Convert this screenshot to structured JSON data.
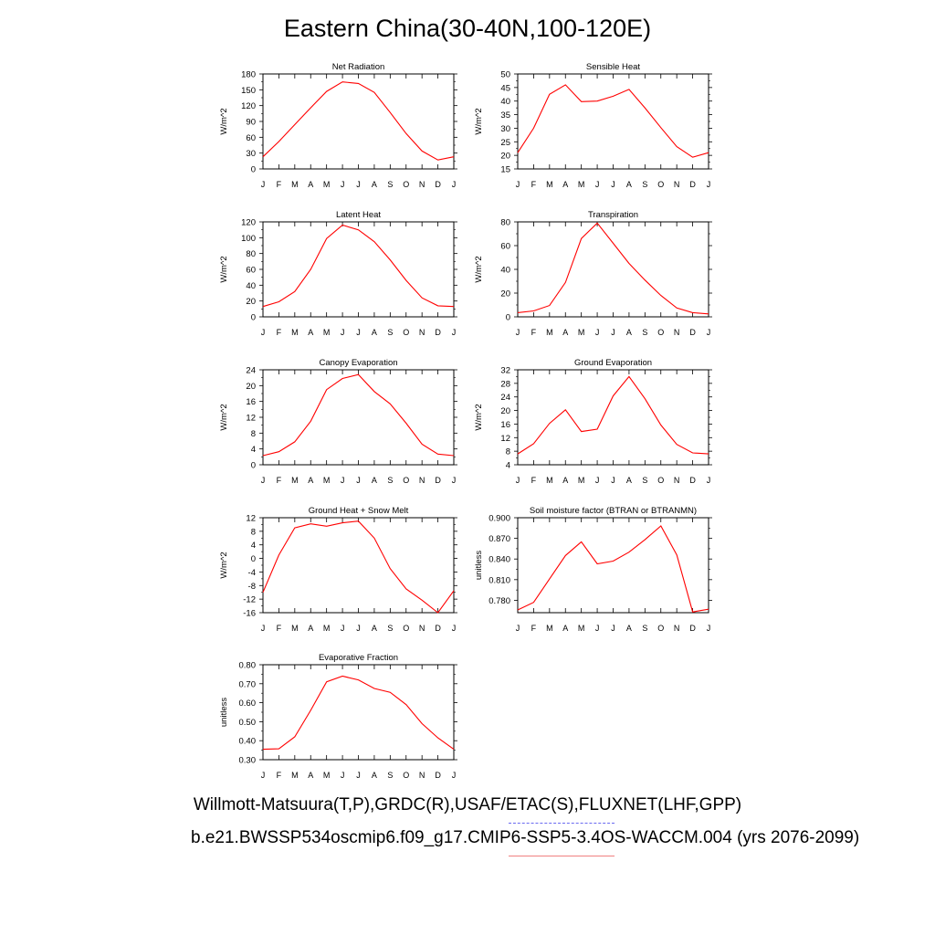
{
  "page_title": "Eastern China(30-40N,100-120E)",
  "captions": {
    "observations": "Willmott-Matsuura(T,P),GRDC(R),USAF/ETAC(S),FLUXNET(LHF,GPP)",
    "model": "b.e21.BWSSP534oscmip6.f09_g17.CMIP6-SSP5-3.4OS-WACCM.004 (yrs 2076-2099)"
  },
  "colors": {
    "model_line": "#ff0000",
    "observations_legend": "#6a6af0",
    "model_legend": "#f08080"
  },
  "chart_data": [
    {
      "type": "line",
      "title": "Net Radiation",
      "ylabel": "W/m^2",
      "categories": [
        "J",
        "F",
        "M",
        "A",
        "M",
        "J",
        "J",
        "A",
        "S",
        "O",
        "N",
        "D",
        "J"
      ],
      "ylim": [
        0,
        180
      ],
      "yticks": [
        0,
        30,
        60,
        90,
        120,
        150,
        180
      ],
      "ytick_labels": [
        "0",
        "30",
        "60",
        "90",
        "120",
        "150",
        "180"
      ],
      "values": [
        23,
        52,
        84,
        116,
        147,
        165,
        162,
        145,
        107,
        67,
        34,
        17,
        23
      ]
    },
    {
      "type": "line",
      "title": "Sensible Heat",
      "ylabel": "W/m^2",
      "categories": [
        "J",
        "F",
        "M",
        "A",
        "M",
        "J",
        "J",
        "A",
        "S",
        "O",
        "N",
        "D",
        "J"
      ],
      "ylim": [
        15,
        50
      ],
      "yticks": [
        15,
        20,
        25,
        30,
        35,
        40,
        45,
        50
      ],
      "ytick_labels": [
        "15",
        "20",
        "25",
        "30",
        "35",
        "40",
        "45",
        "50"
      ],
      "values": [
        21,
        30,
        42.5,
        46,
        39.8,
        40,
        41.8,
        44.3,
        37.5,
        30.2,
        23.2,
        19.3,
        21
      ]
    },
    {
      "type": "line",
      "title": "Latent Heat",
      "ylabel": "W/m^2",
      "categories": [
        "J",
        "F",
        "M",
        "A",
        "M",
        "J",
        "J",
        "A",
        "S",
        "O",
        "N",
        "D",
        "J"
      ],
      "ylim": [
        0,
        120
      ],
      "yticks": [
        0,
        20,
        40,
        60,
        80,
        100,
        120
      ],
      "ytick_labels": [
        "0",
        "20",
        "40",
        "60",
        "80",
        "100",
        "120"
      ],
      "values": [
        13,
        19,
        32,
        60,
        99,
        116,
        110,
        95,
        72,
        46,
        24,
        14,
        13
      ]
    },
    {
      "type": "line",
      "title": "Transpiration",
      "ylabel": "W/m^2",
      "categories": [
        "J",
        "F",
        "M",
        "A",
        "M",
        "J",
        "J",
        "A",
        "S",
        "O",
        "N",
        "D",
        "J"
      ],
      "ylim": [
        0,
        80
      ],
      "yticks": [
        0,
        20,
        40,
        60,
        80
      ],
      "ytick_labels": [
        "0",
        "20",
        "40",
        "60",
        "80"
      ],
      "values": [
        3.5,
        5,
        9.5,
        29,
        66,
        79,
        62,
        45,
        31,
        18,
        7.5,
        3.5,
        2.5
      ]
    },
    {
      "type": "line",
      "title": "Canopy Evaporation",
      "ylabel": "W/m^2",
      "categories": [
        "J",
        "F",
        "M",
        "A",
        "M",
        "J",
        "J",
        "A",
        "S",
        "O",
        "N",
        "D",
        "J"
      ],
      "ylim": [
        0,
        24
      ],
      "yticks": [
        0,
        4,
        8,
        12,
        16,
        20,
        24
      ],
      "ytick_labels": [
        "0",
        "4",
        "8",
        "12",
        "16",
        "20",
        "24"
      ],
      "values": [
        2.3,
        3.3,
        5.8,
        11,
        19,
        21.8,
        22.8,
        18.5,
        15.4,
        10.5,
        5.2,
        2.7,
        2.3
      ]
    },
    {
      "type": "line",
      "title": "Ground Evaporation",
      "ylabel": "W/m^2",
      "categories": [
        "J",
        "F",
        "M",
        "A",
        "M",
        "J",
        "J",
        "A",
        "S",
        "O",
        "N",
        "D",
        "J"
      ],
      "ylim": [
        4,
        32
      ],
      "yticks": [
        4,
        8,
        12,
        16,
        20,
        24,
        28,
        32
      ],
      "ytick_labels": [
        "4",
        "8",
        "12",
        "16",
        "20",
        "24",
        "28",
        "32"
      ],
      "values": [
        7.2,
        10.2,
        16.2,
        20.2,
        13.8,
        14.5,
        24.3,
        30,
        23.5,
        15.7,
        10,
        7.5,
        7.2
      ]
    },
    {
      "type": "line",
      "title": "Ground Heat + Snow Melt",
      "ylabel": "W/m^2",
      "categories": [
        "J",
        "F",
        "M",
        "A",
        "M",
        "J",
        "J",
        "A",
        "S",
        "O",
        "N",
        "D",
        "J"
      ],
      "ylim": [
        -16,
        12
      ],
      "yticks": [
        -16,
        -12,
        -8,
        -4,
        0,
        4,
        8,
        12
      ],
      "ytick_labels": [
        "-16",
        "-12",
        "-8",
        "-4",
        "0",
        "4",
        "8",
        "12"
      ],
      "values": [
        -10,
        1,
        9,
        10.2,
        9.5,
        10.5,
        11,
        6,
        -3,
        -9,
        -12.3,
        -16,
        -9.5
      ]
    },
    {
      "type": "line",
      "title": "Soil moisture factor (BTRAN or BTRANMN)",
      "ylabel": "unitless",
      "categories": [
        "J",
        "F",
        "M",
        "A",
        "M",
        "J",
        "J",
        "A",
        "S",
        "O",
        "N",
        "D",
        "J"
      ],
      "ylim": [
        0.762,
        0.9
      ],
      "yticks": [
        0.78,
        0.81,
        0.84,
        0.87,
        0.9
      ],
      "ytick_labels": [
        "0.780",
        "0.810",
        "0.840",
        "0.870",
        "0.900"
      ],
      "values": [
        0.766,
        0.777,
        0.811,
        0.845,
        0.865,
        0.833,
        0.837,
        0.85,
        0.868,
        0.888,
        0.846,
        0.763,
        0.767
      ]
    },
    {
      "type": "line",
      "title": "Evaporative Fraction",
      "ylabel": "unitless",
      "categories": [
        "J",
        "F",
        "M",
        "A",
        "M",
        "J",
        "J",
        "A",
        "S",
        "O",
        "N",
        "D",
        "J"
      ],
      "ylim": [
        0.3,
        0.8
      ],
      "yticks": [
        0.3,
        0.4,
        0.5,
        0.6,
        0.7,
        0.8
      ],
      "ytick_labels": [
        "0.30",
        "0.40",
        "0.50",
        "0.60",
        "0.70",
        "0.80"
      ],
      "values": [
        0.355,
        0.357,
        0.42,
        0.56,
        0.71,
        0.74,
        0.72,
        0.675,
        0.655,
        0.59,
        0.49,
        0.415,
        0.355
      ]
    }
  ]
}
